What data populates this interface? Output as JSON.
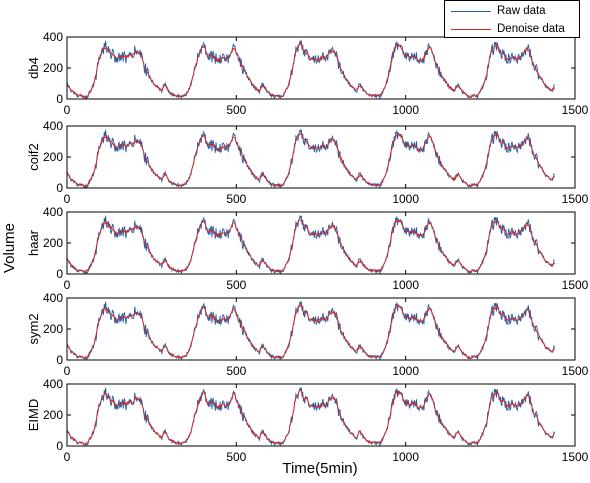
{
  "figure": {
    "ylabel": "Volume",
    "xlabel": "Time(5min)"
  },
  "legend": {
    "raw_label": "Raw data",
    "denoise_label": "Denoise data"
  },
  "colors": {
    "raw": "#1f5fa8",
    "denoise": "#e0241b"
  },
  "chart_data": [
    {
      "type": "line",
      "subplot_label": "db4",
      "xlim": [
        0,
        1500
      ],
      "ylim": [
        0,
        400
      ],
      "xticks": [
        0,
        500,
        1000,
        1500
      ],
      "yticks": [
        0,
        200,
        400
      ],
      "series": [
        {
          "name": "Raw data"
        },
        {
          "name": "Denoise data"
        }
      ],
      "x": [
        0,
        15,
        30,
        60,
        80,
        100,
        115,
        130,
        150,
        170,
        190,
        205,
        215,
        230,
        245,
        260,
        280,
        300,
        288
      ],
      "raw_pattern_per_day": {
        "period": 288,
        "x": [
          0,
          15,
          30,
          60,
          80,
          100,
          115,
          130,
          150,
          170,
          190,
          205,
          215,
          230,
          245,
          260,
          280,
          288
        ],
        "y": [
          100,
          45,
          20,
          15,
          100,
          300,
          350,
          290,
          260,
          270,
          260,
          330,
          300,
          200,
          140,
          90,
          45,
          100
        ]
      },
      "days": 5,
      "x_end": 1440
    },
    {
      "type": "line",
      "subplot_label": "coif2",
      "xlim": [
        0,
        1500
      ],
      "ylim": [
        0,
        400
      ],
      "xticks": [
        0,
        500,
        1000,
        1500
      ],
      "yticks": [
        0,
        200,
        400
      ],
      "series": [
        {
          "name": "Raw data"
        },
        {
          "name": "Denoise data"
        }
      ]
    },
    {
      "type": "line",
      "subplot_label": "haar",
      "xlim": [
        0,
        1500
      ],
      "ylim": [
        0,
        400
      ],
      "xticks": [
        0,
        500,
        1000,
        1500
      ],
      "yticks": [
        0,
        200,
        400
      ],
      "series": [
        {
          "name": "Raw data"
        },
        {
          "name": "Denoise data"
        }
      ]
    },
    {
      "type": "line",
      "subplot_label": "sym2",
      "xlim": [
        0,
        1500
      ],
      "ylim": [
        0,
        400
      ],
      "xticks": [
        0,
        500,
        1000,
        1500
      ],
      "yticks": [
        0,
        200,
        400
      ],
      "series": [
        {
          "name": "Raw data"
        },
        {
          "name": "Denoise data"
        }
      ]
    },
    {
      "type": "line",
      "subplot_label": "EIMD",
      "xlim": [
        0,
        1500
      ],
      "ylim": [
        0,
        400
      ],
      "xticks": [
        0,
        500,
        1000,
        1500
      ],
      "yticks": [
        0,
        200,
        400
      ],
      "series": [
        {
          "name": "Raw data"
        },
        {
          "name": "Denoise data"
        }
      ]
    }
  ]
}
